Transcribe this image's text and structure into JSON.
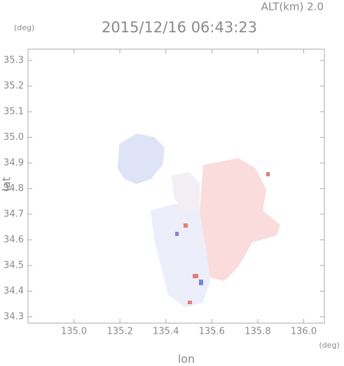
{
  "chart_data": {
    "type": "map",
    "title": "2015/12/16 06:43:23",
    "annotation": "ALT(km) 2.0",
    "x_label": "lon",
    "y_label": "lat",
    "x_unit": "(deg)",
    "y_unit": "(deg)",
    "xlim": [
      134.8,
      136.09
    ],
    "ylim": [
      34.275,
      35.344
    ],
    "xticks": [
      {
        "value": 135,
        "label": "135.0"
      },
      135.2,
      135.4,
      135.6,
      135.8,
      {
        "value": 136,
        "label": "136.0"
      }
    ],
    "yticks": [
      34.3,
      34.4,
      34.5,
      34.6,
      34.7,
      34.8,
      34.9,
      {
        "value": 35,
        "label": "35.0"
      },
      35.1,
      35.2,
      35.3
    ]
  }
}
